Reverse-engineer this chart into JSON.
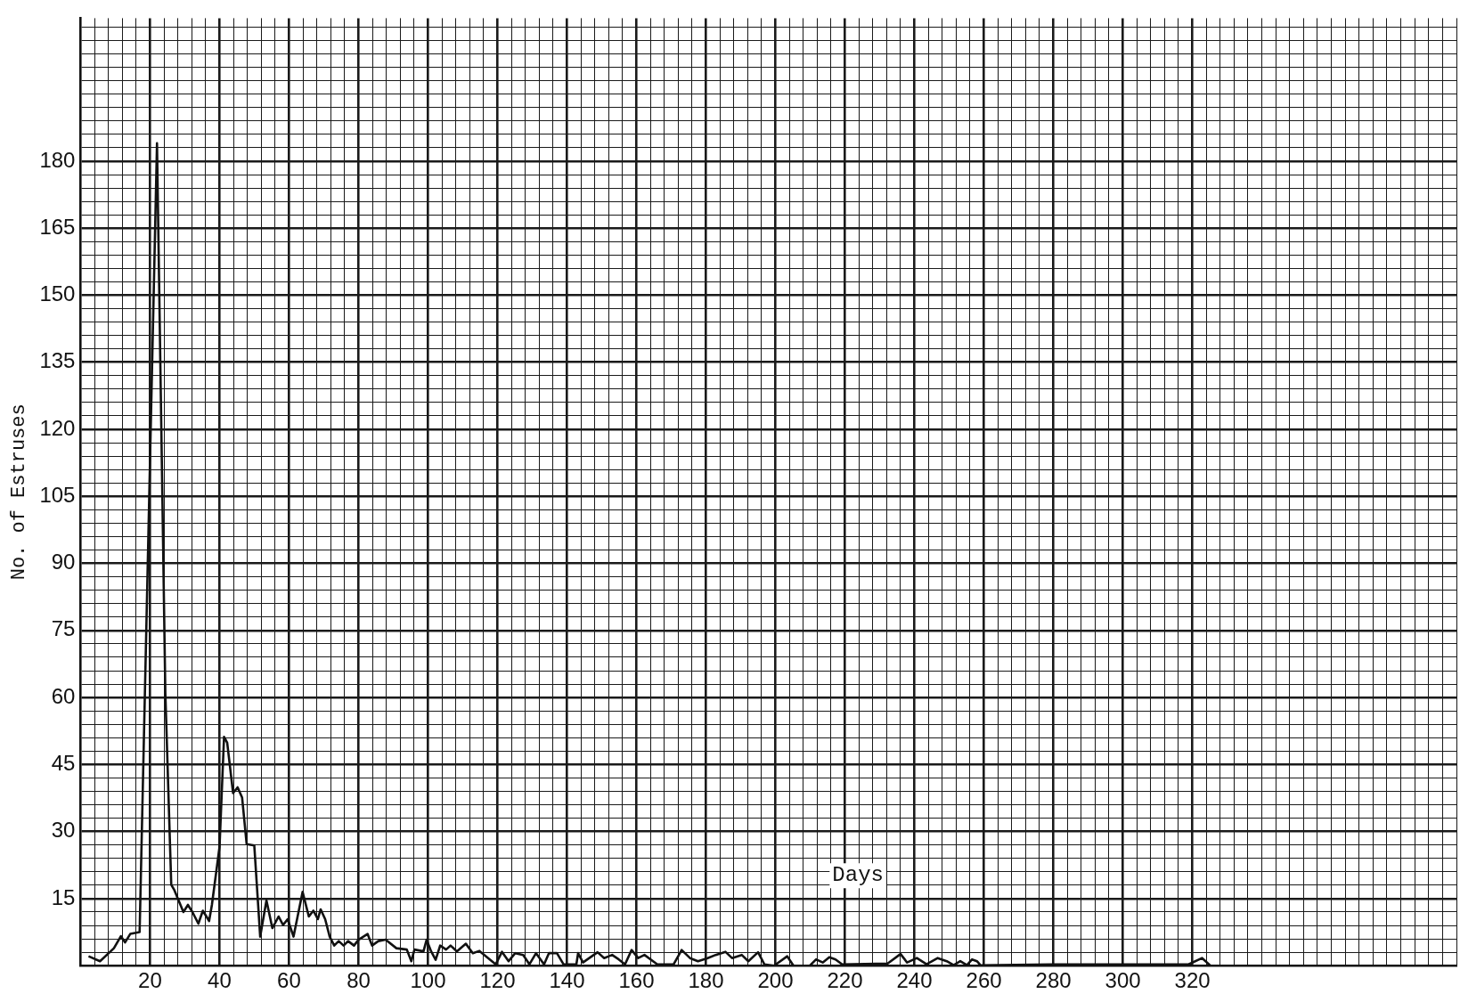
{
  "chart_data": {
    "type": "line",
    "xlabel": "Days",
    "ylabel": "No. of Estruses",
    "grid": true,
    "legend": false,
    "xlim": [
      0,
      396
    ],
    "ylim": [
      0,
      212
    ],
    "xticks": [
      {
        "value": 0,
        "label": null
      },
      {
        "value": 4,
        "label": null
      },
      {
        "value": 8,
        "label": null
      },
      {
        "value": 12,
        "label": null
      },
      {
        "value": 16,
        "label": null
      },
      20,
      {
        "value": 24,
        "label": null
      },
      {
        "value": 28,
        "label": null
      },
      {
        "value": 32,
        "label": null
      },
      {
        "value": 36,
        "label": null
      },
      40,
      {
        "value": 44,
        "label": null
      },
      {
        "value": 48,
        "label": null
      },
      {
        "value": 52,
        "label": null
      },
      {
        "value": 56,
        "label": null
      },
      60,
      {
        "value": 64,
        "label": null
      },
      {
        "value": 68,
        "label": null
      },
      {
        "value": 72,
        "label": null
      },
      {
        "value": 76,
        "label": null
      },
      80,
      {
        "value": 84,
        "label": null
      },
      {
        "value": 88,
        "label": null
      },
      {
        "value": 92,
        "label": null
      },
      {
        "value": 96,
        "label": null
      },
      100,
      {
        "value": 104,
        "label": null
      },
      {
        "value": 108,
        "label": null
      },
      {
        "value": 112,
        "label": null
      },
      {
        "value": 116,
        "label": null
      },
      120,
      {
        "value": 124,
        "label": null
      },
      {
        "value": 128,
        "label": null
      },
      {
        "value": 132,
        "label": null
      },
      {
        "value": 136,
        "label": null
      },
      140,
      {
        "value": 144,
        "label": null
      },
      {
        "value": 148,
        "label": null
      },
      {
        "value": 152,
        "label": null
      },
      {
        "value": 156,
        "label": null
      },
      160,
      {
        "value": 164,
        "label": null
      },
      {
        "value": 168,
        "label": null
      },
      {
        "value": 172,
        "label": null
      },
      {
        "value": 176,
        "label": null
      },
      180,
      {
        "value": 184,
        "label": null
      },
      {
        "value": 188,
        "label": null
      },
      {
        "value": 192,
        "label": null
      },
      {
        "value": 196,
        "label": null
      },
      200,
      {
        "value": 204,
        "label": null
      },
      {
        "value": 208,
        "label": null
      },
      {
        "value": 212,
        "label": null
      },
      {
        "value": 216,
        "label": null
      },
      220,
      {
        "value": 224,
        "label": null
      },
      {
        "value": 228,
        "label": null
      },
      {
        "value": 232,
        "label": null
      },
      {
        "value": 236,
        "label": null
      },
      240,
      {
        "value": 244,
        "label": null
      },
      {
        "value": 248,
        "label": null
      },
      {
        "value": 252,
        "label": null
      },
      {
        "value": 256,
        "label": null
      },
      260,
      {
        "value": 264,
        "label": null
      },
      {
        "value": 268,
        "label": null
      },
      {
        "value": 272,
        "label": null
      },
      {
        "value": 276,
        "label": null
      },
      280,
      {
        "value": 284,
        "label": null
      },
      {
        "value": 288,
        "label": null
      },
      {
        "value": 292,
        "label": null
      },
      {
        "value": 296,
        "label": null
      },
      300,
      {
        "value": 304,
        "label": null
      },
      {
        "value": 308,
        "label": null
      },
      {
        "value": 312,
        "label": null
      },
      {
        "value": 316,
        "label": null
      },
      320,
      {
        "value": 324,
        "label": null
      },
      {
        "value": 328,
        "label": null
      },
      {
        "value": 332,
        "label": null
      },
      {
        "value": 336,
        "label": null
      },
      {
        "value": 340,
        "label": null
      },
      {
        "value": 344,
        "label": null
      },
      {
        "value": 348,
        "label": null
      },
      {
        "value": 352,
        "label": null
      },
      {
        "value": 356,
        "label": null
      },
      {
        "value": 360,
        "label": null
      },
      {
        "value": 364,
        "label": null
      },
      {
        "value": 368,
        "label": null
      },
      {
        "value": 372,
        "label": null
      },
      {
        "value": 376,
        "label": null
      },
      {
        "value": 380,
        "label": null
      },
      {
        "value": 384,
        "label": null
      },
      {
        "value": 388,
        "label": null
      },
      {
        "value": 392,
        "label": null
      },
      {
        "value": 396,
        "label": null
      }
    ],
    "yticks": [
      {
        "value": 0,
        "label": null
      },
      {
        "value": 3,
        "label": null
      },
      {
        "value": 6,
        "label": null
      },
      {
        "value": 9,
        "label": null
      },
      {
        "value": 12,
        "label": null
      },
      15,
      {
        "value": 18,
        "label": null
      },
      {
        "value": 21,
        "label": null
      },
      {
        "value": 24,
        "label": null
      },
      {
        "value": 27,
        "label": null
      },
      30,
      {
        "value": 33,
        "label": null
      },
      {
        "value": 36,
        "label": null
      },
      {
        "value": 39,
        "label": null
      },
      {
        "value": 42,
        "label": null
      },
      45,
      {
        "value": 48,
        "label": null
      },
      {
        "value": 51,
        "label": null
      },
      {
        "value": 54,
        "label": null
      },
      {
        "value": 57,
        "label": null
      },
      60,
      {
        "value": 63,
        "label": null
      },
      {
        "value": 66,
        "label": null
      },
      {
        "value": 69,
        "label": null
      },
      {
        "value": 72,
        "label": null
      },
      75,
      {
        "value": 78,
        "label": null
      },
      {
        "value": 81,
        "label": null
      },
      {
        "value": 84,
        "label": null
      },
      {
        "value": 87,
        "label": null
      },
      90,
      {
        "value": 93,
        "label": null
      },
      {
        "value": 96,
        "label": null
      },
      {
        "value": 99,
        "label": null
      },
      {
        "value": 102,
        "label": null
      },
      105,
      {
        "value": 108,
        "label": null
      },
      {
        "value": 111,
        "label": null
      },
      {
        "value": 114,
        "label": null
      },
      {
        "value": 117,
        "label": null
      },
      120,
      {
        "value": 123,
        "label": null
      },
      {
        "value": 126,
        "label": null
      },
      {
        "value": 129,
        "label": null
      },
      {
        "value": 132,
        "label": null
      },
      135,
      {
        "value": 138,
        "label": null
      },
      {
        "value": 141,
        "label": null
      },
      {
        "value": 144,
        "label": null
      },
      {
        "value": 147,
        "label": null
      },
      150,
      {
        "value": 153,
        "label": null
      },
      {
        "value": 156,
        "label": null
      },
      {
        "value": 159,
        "label": null
      },
      {
        "value": 162,
        "label": null
      },
      165,
      {
        "value": 168,
        "label": null
      },
      {
        "value": 171,
        "label": null
      },
      {
        "value": 174,
        "label": null
      },
      {
        "value": 177,
        "label": null
      },
      180,
      {
        "value": 183,
        "label": null
      },
      {
        "value": 186,
        "label": null
      },
      {
        "value": 189,
        "label": null
      },
      {
        "value": 192,
        "label": null
      },
      {
        "value": 195,
        "label": null
      },
      {
        "value": 198,
        "label": null
      },
      {
        "value": 201,
        "label": null
      },
      {
        "value": 204,
        "label": null
      },
      {
        "value": 207,
        "label": null
      },
      {
        "value": 210,
        "label": null
      }
    ],
    "series": [
      {
        "color": "#111111",
        "x": [
          2.3,
          5.6,
          9.6,
          11.6,
          12.8,
          14.3,
          17,
          22,
          24.4,
          26.1,
          27,
          29.6,
          30.9,
          32.2,
          33.9,
          35.2,
          37,
          37.8,
          40,
          41.3,
          42.2,
          43.9,
          45.2,
          46.5,
          47.8,
          50,
          51.7,
          53.5,
          55.2,
          57,
          58.3,
          59.6,
          61.3,
          63.9,
          65.7,
          67,
          68.3,
          69.1,
          70.4,
          71.7,
          73,
          74.3,
          75.7,
          77,
          78.7,
          80,
          82.6,
          83.9,
          85.7,
          87.8,
          90.9,
          93.9,
          95.2,
          96.1,
          98.7,
          99.6,
          100.9,
          102.2,
          103.5,
          105.2,
          106.5,
          108.3,
          110.9,
          112.9,
          114.8,
          119.5,
          121.3,
          123.2,
          125.1,
          127.4,
          129.2,
          131.1,
          133.4,
          134.8,
          137.1,
          139,
          142.7,
          143.2,
          144.6,
          148.8,
          150.7,
          153,
          154.9,
          156.7,
          158.6,
          160.5,
          162.3,
          166,
          170.7,
          173,
          175.4,
          177.7,
          180.5,
          182.8,
          185.6,
          187.5,
          190.3,
          192.2,
          195,
          196.8,
          199.6,
          203.4,
          205.2,
          209.9,
          211.7,
          213.6,
          215.5,
          217.3,
          219.2,
          232.3,
          236,
          237.9,
          240.7,
          243.5,
          246.7,
          249.3,
          251.3,
          253.2,
          255.1,
          256.6,
          258,
          259,
          279.3,
          318.9,
          322.8,
          325.2
        ],
        "values": [
          2.1,
          1.0,
          3.9,
          6.6,
          5.2,
          7.1,
          7.5,
          184,
          61,
          18.1,
          16.9,
          12,
          13.6,
          12,
          9.4,
          12.3,
          10,
          13.6,
          26.6,
          51.2,
          49.9,
          38.6,
          39.9,
          37.6,
          27.2,
          26.9,
          6.5,
          14.6,
          8.4,
          11,
          9.1,
          10.4,
          6.5,
          16.5,
          11,
          12.3,
          10.4,
          12.6,
          10.4,
          6.5,
          4.5,
          5.5,
          4.5,
          5.5,
          4.5,
          5.8,
          7.1,
          4.5,
          5.5,
          5.8,
          3.9,
          3.6,
          1,
          3.6,
          3.2,
          5.8,
          3.2,
          1.3,
          4.5,
          3.6,
          4.5,
          3.2,
          4.9,
          2.8,
          3.3,
          0.3,
          3.1,
          1,
          2.8,
          2.4,
          0.3,
          2.8,
          0.3,
          2.8,
          2.8,
          0.3,
          0.3,
          2.8,
          0.7,
          3,
          1.7,
          2.4,
          1.4,
          0.3,
          3.5,
          1.7,
          2.4,
          0.3,
          0.3,
          3.5,
          1.7,
          1,
          1.7,
          2.4,
          3.1,
          1.7,
          2.4,
          1,
          3,
          0.3,
          0,
          2.1,
          0,
          0,
          1.4,
          0.7,
          1.9,
          1.4,
          0.3,
          0.5,
          2.6,
          0.7,
          1.7,
          0.3,
          1.7,
          1,
          0.1,
          1,
          0.1,
          1.4,
          1,
          0.1,
          0.3,
          0.3,
          1.7,
          0
        ]
      }
    ]
  }
}
